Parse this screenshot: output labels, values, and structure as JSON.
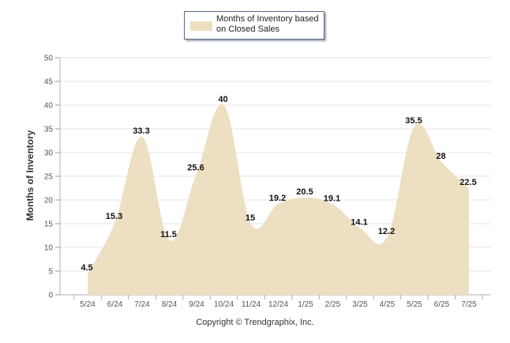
{
  "legend": {
    "label": "Months of Inventory based on Closed Sales",
    "color": "#eddfc2"
  },
  "credit": "Copyright © Trendgraphix, Inc.",
  "chart_data": {
    "type": "area",
    "ylabel": "Months of Inventory",
    "xlabel": "",
    "ylim": [
      0,
      50
    ],
    "yticks": [
      0,
      5,
      10,
      15,
      20,
      25,
      30,
      35,
      40,
      45,
      50
    ],
    "grid": true,
    "legend_position": "top-center",
    "categories": [
      "5/24",
      "6/24",
      "7/24",
      "8/24",
      "9/24",
      "10/24",
      "11/24",
      "12/24",
      "1/25",
      "2/25",
      "3/25",
      "4/25",
      "5/25",
      "6/25",
      "7/25"
    ],
    "series": [
      {
        "name": "Months of Inventory based on Closed Sales",
        "values": [
          4.5,
          15.3,
          33.3,
          11.5,
          25.6,
          40,
          15,
          19.2,
          20.5,
          19.1,
          14.1,
          12.2,
          35.5,
          28,
          22.5
        ],
        "labels": [
          "4.5",
          "15.3",
          "33.3",
          "11.5",
          "25.6",
          "40",
          "15",
          "19.2",
          "20.5",
          "19.1",
          "14.1",
          "12.2",
          "35.5",
          "28",
          "22.5"
        ],
        "color": "#eddfc2"
      }
    ]
  }
}
